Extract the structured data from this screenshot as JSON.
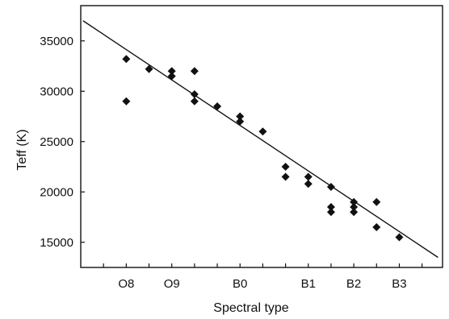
{
  "chart_data": {
    "type": "scatter",
    "title": "",
    "xlabel": "Spectral type",
    "ylabel": "Teff (K)",
    "xlim": [
      6.0,
      13.95
    ],
    "ylim": [
      12500,
      38500
    ],
    "xticks": [
      {
        "value": 7.0,
        "label": "O8"
      },
      {
        "value": 8.0,
        "label": "O9"
      },
      {
        "value": 9.5,
        "label": "B0"
      },
      {
        "value": 11.0,
        "label": "B1"
      },
      {
        "value": 12.0,
        "label": "B2"
      },
      {
        "value": 13.0,
        "label": "B3"
      }
    ],
    "xminor": [
      6.5,
      7.5,
      8.5,
      9.0,
      10.0,
      10.5,
      11.5,
      12.5,
      13.5
    ],
    "yticks": [
      15000,
      20000,
      25000,
      30000,
      35000
    ],
    "points": [
      {
        "x": 7.0,
        "y": 33200
      },
      {
        "x": 7.0,
        "y": 29000
      },
      {
        "x": 7.5,
        "y": 32200
      },
      {
        "x": 8.0,
        "y": 32000
      },
      {
        "x": 8.0,
        "y": 31500
      },
      {
        "x": 8.5,
        "y": 32000
      },
      {
        "x": 8.5,
        "y": 29700
      },
      {
        "x": 8.5,
        "y": 29000
      },
      {
        "x": 9.0,
        "y": 28500
      },
      {
        "x": 9.5,
        "y": 27500
      },
      {
        "x": 9.5,
        "y": 27000
      },
      {
        "x": 10.0,
        "y": 26000
      },
      {
        "x": 10.5,
        "y": 22500
      },
      {
        "x": 10.5,
        "y": 21500
      },
      {
        "x": 11.0,
        "y": 21500
      },
      {
        "x": 11.0,
        "y": 20800
      },
      {
        "x": 11.5,
        "y": 20500
      },
      {
        "x": 11.5,
        "y": 18500
      },
      {
        "x": 11.5,
        "y": 18000
      },
      {
        "x": 12.0,
        "y": 19000
      },
      {
        "x": 12.0,
        "y": 18500
      },
      {
        "x": 12.0,
        "y": 18000
      },
      {
        "x": 12.5,
        "y": 19000
      },
      {
        "x": 12.5,
        "y": 16500
      },
      {
        "x": 13.0,
        "y": 15500
      }
    ],
    "fit_line": [
      {
        "x": 6.05,
        "y": 37000
      },
      {
        "x": 13.85,
        "y": 13500
      }
    ],
    "grid": false,
    "legend": "none"
  }
}
